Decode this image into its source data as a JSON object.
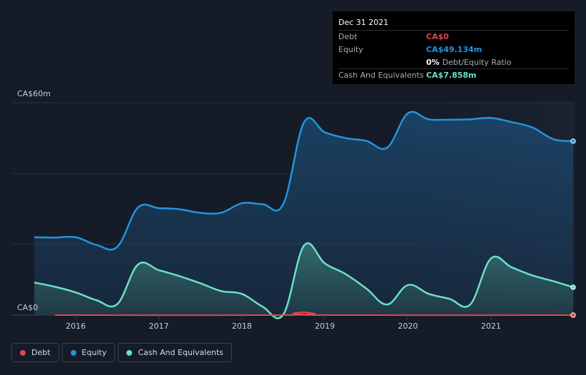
{
  "tooltip": {
    "date": "Dec 31 2021",
    "debt_label": "Debt",
    "debt_value": "CA$0",
    "equity_label": "Equity",
    "equity_value": "CA$49.134m",
    "ratio_value": "0%",
    "ratio_label": "Debt/Equity Ratio",
    "cash_label": "Cash And Equivalents",
    "cash_value": "CA$7.858m"
  },
  "legend": [
    {
      "label": "Debt",
      "color": "#e0474c"
    },
    {
      "label": "Equity",
      "color": "#2394df"
    },
    {
      "label": "Cash And Equivalents",
      "color": "#6ce0c8"
    }
  ],
  "chart_data": {
    "type": "area",
    "ylabel_top": "CA$60m",
    "ylabel_bottom": "CA$0",
    "ylim": [
      0,
      60
    ],
    "xlim": [
      2015.5,
      2021.99
    ],
    "x_ticks": [
      2016,
      2017,
      2018,
      2019,
      2020,
      2021
    ],
    "x_tick_labels": [
      "2016",
      "2017",
      "2018",
      "2019",
      "2020",
      "2021"
    ],
    "grid": true,
    "series": [
      {
        "name": "Equity",
        "color": "#2394df",
        "points": [
          [
            2015.5,
            22.0
          ],
          [
            2015.75,
            21.9
          ],
          [
            2016.0,
            22.0
          ],
          [
            2016.25,
            19.8
          ],
          [
            2016.5,
            19.3
          ],
          [
            2016.75,
            30.4
          ],
          [
            2017.0,
            30.2
          ],
          [
            2017.25,
            29.9
          ],
          [
            2017.5,
            28.9
          ],
          [
            2017.75,
            28.9
          ],
          [
            2018.0,
            31.6
          ],
          [
            2018.25,
            31.3
          ],
          [
            2018.5,
            31.4
          ],
          [
            2018.75,
            54.5
          ],
          [
            2019.0,
            51.6
          ],
          [
            2019.25,
            50.0
          ],
          [
            2019.5,
            49.2
          ],
          [
            2019.75,
            47.3
          ],
          [
            2020.0,
            57.0
          ],
          [
            2020.25,
            55.3
          ],
          [
            2020.5,
            55.2
          ],
          [
            2020.75,
            55.3
          ],
          [
            2021.0,
            55.7
          ],
          [
            2021.25,
            54.5
          ],
          [
            2021.5,
            53.0
          ],
          [
            2021.75,
            49.7
          ],
          [
            2021.99,
            49.134
          ]
        ]
      },
      {
        "name": "Cash And Equivalents",
        "color": "#6ce0c8",
        "points": [
          [
            2015.5,
            9.2
          ],
          [
            2015.75,
            8.0
          ],
          [
            2016.0,
            6.4
          ],
          [
            2016.25,
            4.2
          ],
          [
            2016.5,
            3.1
          ],
          [
            2016.75,
            14.3
          ],
          [
            2017.0,
            12.7
          ],
          [
            2017.25,
            11.0
          ],
          [
            2017.5,
            9.0
          ],
          [
            2017.75,
            6.8
          ],
          [
            2018.0,
            6.0
          ],
          [
            2018.25,
            2.4
          ],
          [
            2018.5,
            0.2
          ],
          [
            2018.75,
            19.7
          ],
          [
            2019.0,
            14.6
          ],
          [
            2019.25,
            11.6
          ],
          [
            2019.5,
            7.5
          ],
          [
            2019.75,
            3.0
          ],
          [
            2020.0,
            8.5
          ],
          [
            2020.25,
            6.0
          ],
          [
            2020.5,
            4.6
          ],
          [
            2020.75,
            3.0
          ],
          [
            2021.0,
            16.0
          ],
          [
            2021.25,
            13.5
          ],
          [
            2021.5,
            11.2
          ],
          [
            2021.75,
            9.6
          ],
          [
            2021.99,
            7.858
          ]
        ]
      },
      {
        "name": "Debt",
        "color": "#e0474c",
        "points": [
          [
            2015.75,
            0
          ],
          [
            2018.5,
            0
          ],
          [
            2018.62,
            0.5
          ],
          [
            2018.75,
            0.8
          ],
          [
            2018.88,
            0.4
          ],
          [
            2019.0,
            0
          ],
          [
            2021.99,
            0
          ]
        ]
      }
    ]
  }
}
